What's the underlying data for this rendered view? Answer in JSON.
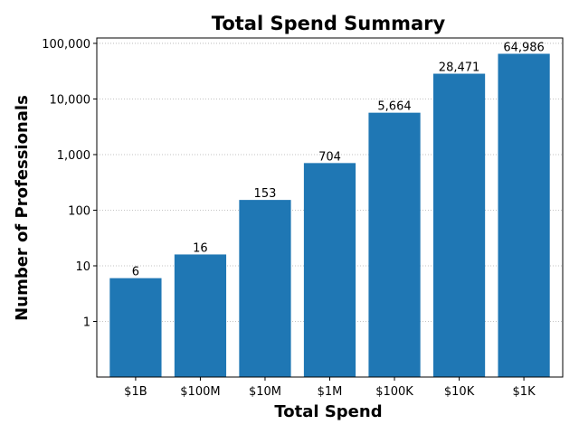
{
  "chart_data": {
    "type": "bar",
    "title": "Total Spend Summary",
    "xlabel": "Total Spend",
    "ylabel": "Number of Professionals",
    "y_scale": "log",
    "ylim": [
      0.1,
      125000
    ],
    "y_ticks": [
      1,
      10,
      100,
      1000,
      10000,
      100000
    ],
    "y_tick_labels": [
      "1",
      "10",
      "100",
      "1,000",
      "10,000",
      "100,000"
    ],
    "grid": "y-dotted",
    "categories": [
      "$1B",
      "$100M",
      "$10M",
      "$1M",
      "$100K",
      "$10K",
      "$1K"
    ],
    "values": [
      6,
      16,
      153,
      704,
      5664,
      28471,
      64986
    ],
    "value_labels": [
      "6",
      "16",
      "153",
      "704",
      "5,664",
      "28,471",
      "64,986"
    ],
    "bar_color": "#1f77b4"
  }
}
